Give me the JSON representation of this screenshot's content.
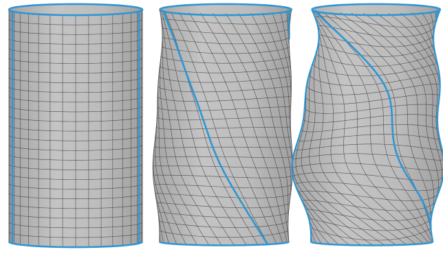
{
  "figure": {
    "panels": [
      {
        "id": "untwisted",
        "twist": 0.0,
        "waviness": 0.0,
        "helix_turns": 0.0
      },
      {
        "id": "twisted",
        "twist": 1.0,
        "waviness": 0.35,
        "helix_turns": 0.5
      },
      {
        "id": "buckled",
        "twist": 1.6,
        "waviness": 1.0,
        "helix_turns": 0.75
      }
    ],
    "colors": {
      "surface": "#bdbdbd",
      "surface_shade": "#a9a9a9",
      "grid_line": "#3a3a3a",
      "highlight_curve": "#2e95d3",
      "background": "#ffffff"
    },
    "grid": {
      "rings": 24,
      "meridians": 16
    }
  }
}
